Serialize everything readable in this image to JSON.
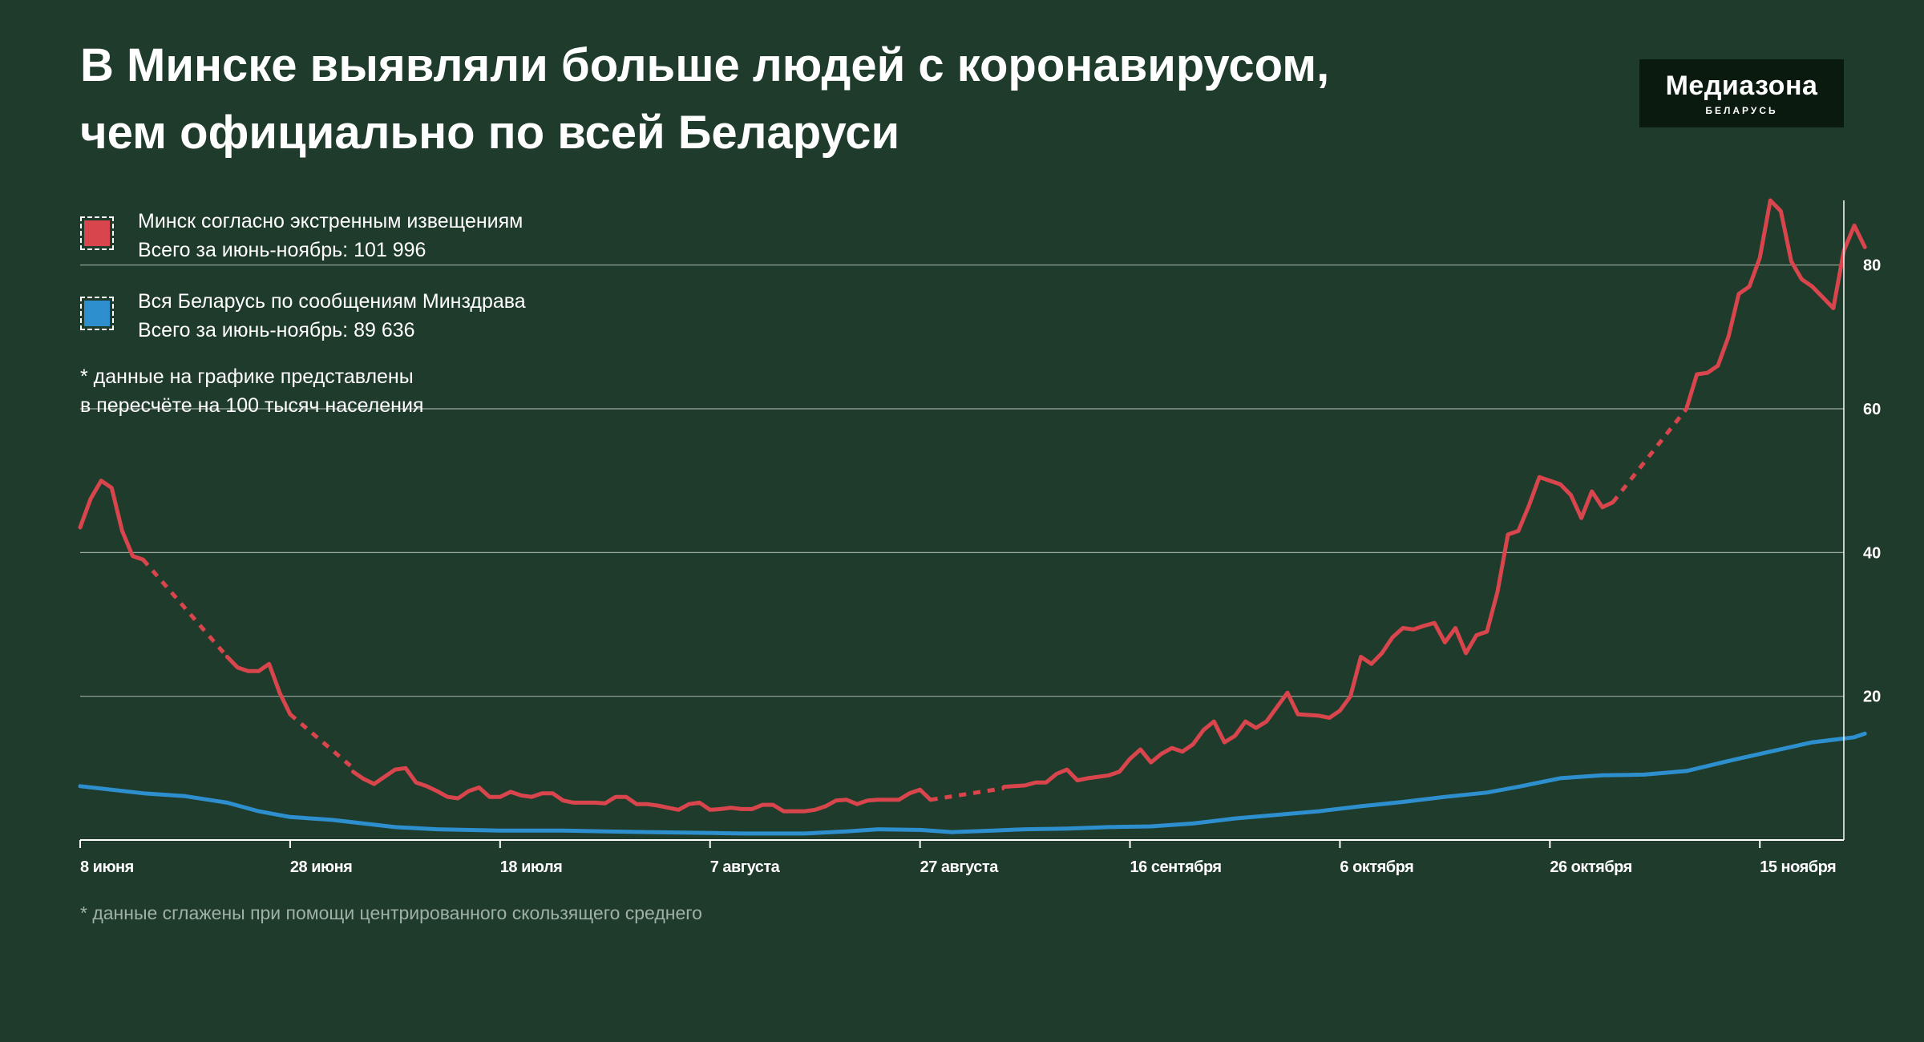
{
  "title_lines": [
    "В Минске выявляли больше людей с коронавирусом,",
    "чем официально по всей Беларуси"
  ],
  "logo": {
    "name": "Медиазона",
    "sub": "БЕЛАРУСЬ"
  },
  "legend": [
    {
      "label": "Минск согласно экстренным извещениям",
      "total": "Всего за июнь-ноябрь: 101 996",
      "color": "#d9454c"
    },
    {
      "label": "Вся Беларусь по сообщениям Минздрава",
      "total": "Всего за июнь-ноябрь: 89 636",
      "color": "#2e8fce"
    }
  ],
  "note_lines": [
    "* данные на графике представлены",
    "в пересчёте на 100 тысяч населения"
  ],
  "footnote": "* данные сглажены при помощи центрированного скользящего среднего",
  "colors": {
    "background": "#1f3b2c",
    "minsk": "#d9454c",
    "belarus": "#2e8fce",
    "grid": "#c8d2cc"
  },
  "chart_data": {
    "type": "line",
    "x_start": "2020-06-08",
    "x_end": "2020-11-23",
    "x_ticks": [
      {
        "label": "8 июня",
        "date": "2020-06-08"
      },
      {
        "label": "28 июня",
        "date": "2020-06-28"
      },
      {
        "label": "18 июля",
        "date": "2020-07-18"
      },
      {
        "label": "7 августа",
        "date": "2020-08-07"
      },
      {
        "label": "27 августа",
        "date": "2020-08-27"
      },
      {
        "label": "16 сентября",
        "date": "2020-09-16"
      },
      {
        "label": "6 октября",
        "date": "2020-10-06"
      },
      {
        "label": "26 октября",
        "date": "2020-10-26"
      },
      {
        "label": "15 ноября",
        "date": "2020-11-15"
      }
    ],
    "ylim": [
      0,
      89
    ],
    "y_ticks": [
      20,
      40,
      60,
      80
    ],
    "y_axis_position": "right",
    "grid": true,
    "series": [
      {
        "name": "Минск согласно экстренным извещениям",
        "color": "#d9454c",
        "segments": [
          {
            "style": "solid",
            "points": [
              [
                "2020-06-08",
                43.5
              ],
              [
                "2020-06-09",
                47.5
              ],
              [
                "2020-06-10",
                50
              ],
              [
                "2020-06-11",
                49
              ],
              [
                "2020-06-12",
                43
              ],
              [
                "2020-06-13",
                39.5
              ],
              [
                "2020-06-14",
                39
              ]
            ]
          },
          {
            "style": "dashed",
            "points": [
              [
                "2020-06-14",
                39
              ],
              [
                "2020-06-22",
                25.5
              ]
            ]
          },
          {
            "style": "solid",
            "points": [
              [
                "2020-06-22",
                25.5
              ],
              [
                "2020-06-23",
                24
              ],
              [
                "2020-06-24",
                23.5
              ],
              [
                "2020-06-25",
                23.5
              ],
              [
                "2020-06-26",
                24.5
              ],
              [
                "2020-06-27",
                20.5
              ],
              [
                "2020-06-28",
                17.5
              ]
            ]
          },
          {
            "style": "dashed",
            "points": [
              [
                "2020-06-28",
                17.5
              ],
              [
                "2020-07-04",
                10
              ]
            ]
          },
          {
            "style": "solid",
            "points": [
              [
                "2020-07-04",
                9.5
              ],
              [
                "2020-07-05",
                8.5
              ],
              [
                "2020-07-06",
                7.8
              ],
              [
                "2020-07-07",
                8.8
              ],
              [
                "2020-07-08",
                9.8
              ],
              [
                "2020-07-09",
                10
              ],
              [
                "2020-07-10",
                8
              ],
              [
                "2020-07-11",
                7.5
              ],
              [
                "2020-07-12",
                6.8
              ],
              [
                "2020-07-13",
                6
              ],
              [
                "2020-07-14",
                5.8
              ],
              [
                "2020-07-15",
                6.8
              ],
              [
                "2020-07-16",
                7.3
              ],
              [
                "2020-07-17",
                6
              ],
              [
                "2020-07-18",
                6
              ],
              [
                "2020-07-19",
                6.7
              ],
              [
                "2020-07-20",
                6.2
              ],
              [
                "2020-07-21",
                6
              ],
              [
                "2020-07-22",
                6.5
              ],
              [
                "2020-07-23",
                6.5
              ],
              [
                "2020-07-24",
                5.5
              ],
              [
                "2020-07-25",
                5.2
              ],
              [
                "2020-07-26",
                5.2
              ],
              [
                "2020-07-27",
                5.2
              ],
              [
                "2020-07-28",
                5.1
              ],
              [
                "2020-07-29",
                6
              ],
              [
                "2020-07-30",
                6
              ],
              [
                "2020-07-31",
                5
              ],
              [
                "2020-08-01",
                5
              ],
              [
                "2020-08-02",
                4.8
              ],
              [
                "2020-08-03",
                4.5
              ],
              [
                "2020-08-04",
                4.2
              ],
              [
                "2020-08-05",
                5
              ],
              [
                "2020-08-06",
                5.2
              ],
              [
                "2020-08-07",
                4.2
              ],
              [
                "2020-08-08",
                4.3
              ],
              [
                "2020-08-09",
                4.5
              ],
              [
                "2020-08-10",
                4.3
              ],
              [
                "2020-08-11",
                4.3
              ],
              [
                "2020-08-12",
                4.9
              ],
              [
                "2020-08-13",
                4.9
              ],
              [
                "2020-08-14",
                4
              ],
              [
                "2020-08-15",
                4
              ],
              [
                "2020-08-16",
                4
              ],
              [
                "2020-08-17",
                4.2
              ],
              [
                "2020-08-18",
                4.7
              ],
              [
                "2020-08-19",
                5.5
              ],
              [
                "2020-08-20",
                5.6
              ],
              [
                "2020-08-21",
                5
              ],
              [
                "2020-08-22",
                5.5
              ],
              [
                "2020-08-23",
                5.6
              ],
              [
                "2020-08-24",
                5.6
              ],
              [
                "2020-08-25",
                5.6
              ],
              [
                "2020-08-26",
                6.5
              ],
              [
                "2020-08-27",
                7
              ],
              [
                "2020-08-28",
                5.6
              ]
            ]
          },
          {
            "style": "dashed",
            "points": [
              [
                "2020-08-28",
                5.6
              ],
              [
                "2020-09-04",
                7.2
              ]
            ]
          },
          {
            "style": "solid",
            "points": [
              [
                "2020-09-04",
                7.4
              ],
              [
                "2020-09-05",
                7.5
              ],
              [
                "2020-09-06",
                7.6
              ],
              [
                "2020-09-07",
                8
              ],
              [
                "2020-09-08",
                8
              ],
              [
                "2020-09-09",
                9.2
              ],
              [
                "2020-09-10",
                9.8
              ],
              [
                "2020-09-11",
                8.3
              ],
              [
                "2020-09-12",
                8.6
              ],
              [
                "2020-09-13",
                8.8
              ],
              [
                "2020-09-14",
                9
              ],
              [
                "2020-09-15",
                9.5
              ],
              [
                "2020-09-16",
                11.3
              ],
              [
                "2020-09-17",
                12.6
              ],
              [
                "2020-09-18",
                10.8
              ],
              [
                "2020-09-19",
                12
              ],
              [
                "2020-09-20",
                12.8
              ],
              [
                "2020-09-21",
                12.3
              ],
              [
                "2020-09-22",
                13.3
              ],
              [
                "2020-09-23",
                15.3
              ],
              [
                "2020-09-24",
                16.5
              ],
              [
                "2020-09-25",
                13.6
              ],
              [
                "2020-09-26",
                14.5
              ],
              [
                "2020-09-27",
                16.5
              ],
              [
                "2020-09-28",
                15.6
              ],
              [
                "2020-09-29",
                16.5
              ],
              [
                "2020-09-30",
                18.5
              ],
              [
                "2020-10-01",
                20.5
              ],
              [
                "2020-10-02",
                17.5
              ],
              [
                "2020-10-03",
                17.4
              ],
              [
                "2020-10-04",
                17.3
              ],
              [
                "2020-10-05",
                17
              ],
              [
                "2020-10-06",
                18
              ],
              [
                "2020-10-07",
                20
              ],
              [
                "2020-10-08",
                25.5
              ],
              [
                "2020-10-09",
                24.5
              ],
              [
                "2020-10-10",
                26
              ],
              [
                "2020-10-11",
                28.2
              ],
              [
                "2020-10-12",
                29.5
              ],
              [
                "2020-10-13",
                29.3
              ],
              [
                "2020-10-14",
                29.8
              ],
              [
                "2020-10-15",
                30.2
              ],
              [
                "2020-10-16",
                27.5
              ],
              [
                "2020-10-17",
                29.5
              ],
              [
                "2020-10-18",
                26
              ],
              [
                "2020-10-19",
                28.5
              ],
              [
                "2020-10-20",
                29
              ],
              [
                "2020-10-21",
                34.5
              ],
              [
                "2020-10-22",
                42.5
              ],
              [
                "2020-10-23",
                43
              ],
              [
                "2020-10-24",
                46.5
              ],
              [
                "2020-10-25",
                50.5
              ],
              [
                "2020-10-26",
                50
              ],
              [
                "2020-10-27",
                49.5
              ],
              [
                "2020-10-28",
                48
              ],
              [
                "2020-10-29",
                44.8
              ],
              [
                "2020-10-30",
                48.5
              ],
              [
                "2020-10-31",
                46.3
              ],
              [
                "2020-11-01",
                47
              ]
            ]
          },
          {
            "style": "dashed",
            "points": [
              [
                "2020-11-01",
                47
              ],
              [
                "2020-11-08",
                60
              ]
            ]
          },
          {
            "style": "solid",
            "points": [
              [
                "2020-11-08",
                60
              ],
              [
                "2020-11-09",
                64.8
              ],
              [
                "2020-11-10",
                65
              ],
              [
                "2020-11-11",
                66
              ],
              [
                "2020-11-12",
                70
              ],
              [
                "2020-11-13",
                76
              ],
              [
                "2020-11-14",
                77
              ],
              [
                "2020-11-15",
                81
              ],
              [
                "2020-11-16",
                89
              ],
              [
                "2020-11-17",
                87.5
              ],
              [
                "2020-11-18",
                80.5
              ],
              [
                "2020-11-19",
                78
              ],
              [
                "2020-11-20",
                77
              ],
              [
                "2020-11-21",
                75.5
              ],
              [
                "2020-11-22",
                74
              ],
              [
                "2020-11-23",
                82
              ],
              [
                "2020-11-24",
                85.5
              ],
              [
                "2020-11-25",
                82.5
              ]
            ]
          }
        ]
      },
      {
        "name": "Вся Беларусь по сообщениям Минздрава",
        "color": "#2e8fce",
        "segments": [
          {
            "style": "solid",
            "points": [
              [
                "2020-06-08",
                7.5
              ],
              [
                "2020-06-14",
                6.5
              ],
              [
                "2020-06-18",
                6.1
              ],
              [
                "2020-06-22",
                5.2
              ],
              [
                "2020-06-25",
                4
              ],
              [
                "2020-06-28",
                3.2
              ],
              [
                "2020-07-02",
                2.8
              ],
              [
                "2020-07-05",
                2.3
              ],
              [
                "2020-07-08",
                1.8
              ],
              [
                "2020-07-12",
                1.5
              ],
              [
                "2020-07-18",
                1.3
              ],
              [
                "2020-07-24",
                1.3
              ],
              [
                "2020-07-28",
                1.2
              ],
              [
                "2020-08-01",
                1.1
              ],
              [
                "2020-08-06",
                1
              ],
              [
                "2020-08-10",
                0.9
              ],
              [
                "2020-08-16",
                0.9
              ],
              [
                "2020-08-20",
                1.2
              ],
              [
                "2020-08-23",
                1.5
              ],
              [
                "2020-08-27",
                1.4
              ],
              [
                "2020-08-30",
                1.1
              ],
              [
                "2020-09-03",
                1.3
              ],
              [
                "2020-09-06",
                1.5
              ],
              [
                "2020-09-10",
                1.6
              ],
              [
                "2020-09-14",
                1.8
              ],
              [
                "2020-09-18",
                1.9
              ],
              [
                "2020-09-22",
                2.3
              ],
              [
                "2020-09-26",
                3
              ],
              [
                "2020-09-30",
                3.5
              ],
              [
                "2020-10-04",
                4
              ],
              [
                "2020-10-08",
                4.7
              ],
              [
                "2020-10-12",
                5.3
              ],
              [
                "2020-10-16",
                6
              ],
              [
                "2020-10-20",
                6.6
              ],
              [
                "2020-10-23",
                7.4
              ],
              [
                "2020-10-27",
                8.6
              ],
              [
                "2020-10-31",
                9
              ],
              [
                "2020-11-04",
                9.1
              ],
              [
                "2020-11-08",
                9.6
              ],
              [
                "2020-11-12",
                11
              ],
              [
                "2020-11-16",
                12.3
              ],
              [
                "2020-11-20",
                13.6
              ],
              [
                "2020-11-24",
                14.3
              ],
              [
                "2020-11-25",
                14.8
              ]
            ]
          }
        ]
      }
    ]
  }
}
